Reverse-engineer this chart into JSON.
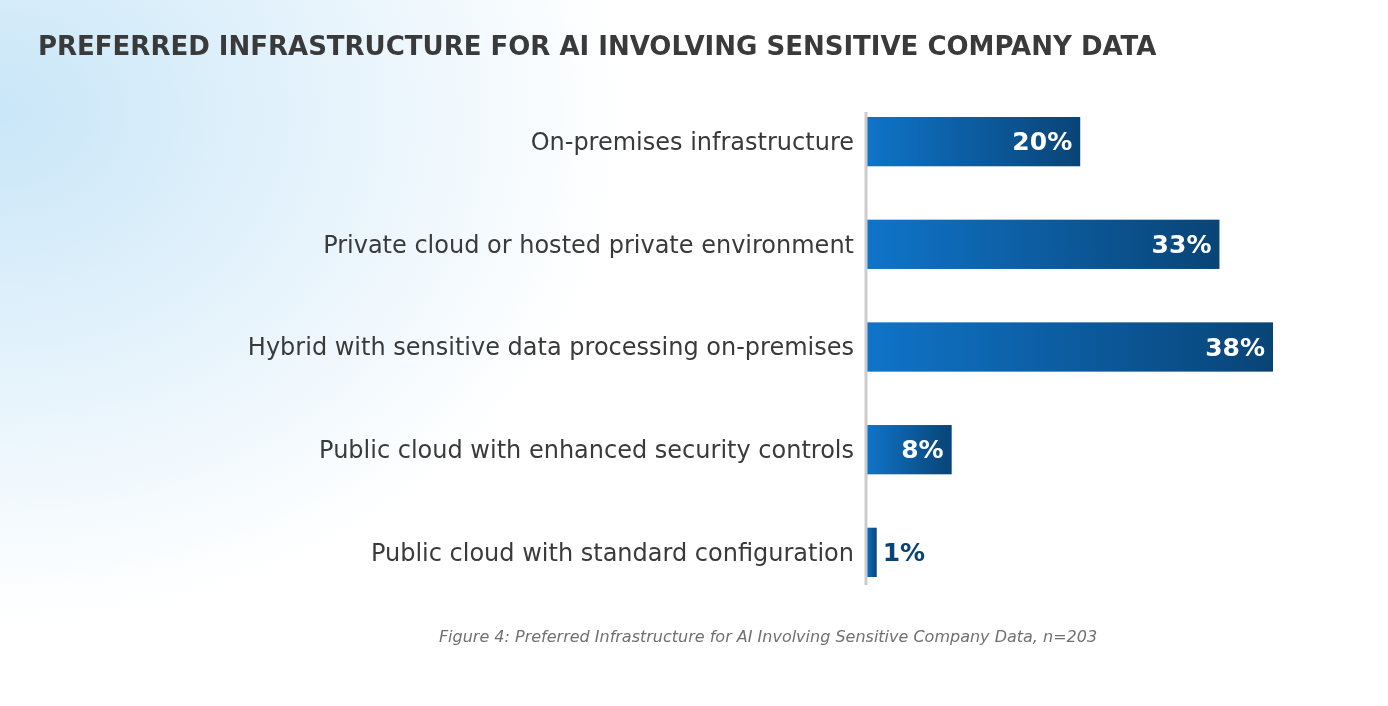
{
  "chart_data": {
    "type": "bar",
    "orientation": "horizontal",
    "title": "PREFERRED INFRASTRUCTURE FOR AI INVOLVING SENSITIVE COMPANY DATA",
    "categories": [
      "On-premises infrastructure",
      "Private cloud or hosted private environment",
      "Hybrid with sensitive data processing on-premises",
      "Public cloud with enhanced security controls",
      "Public cloud with standard configuration"
    ],
    "values": [
      20,
      33,
      38,
      8,
      1
    ],
    "value_labels": [
      "20%",
      "33%",
      "38%",
      "8%",
      "1%"
    ],
    "color": "#0b5797",
    "annotations": [
      "Figure 4: Preferred Infrastructure for AI Involving Sensitive Company Data, n=203"
    ]
  }
}
